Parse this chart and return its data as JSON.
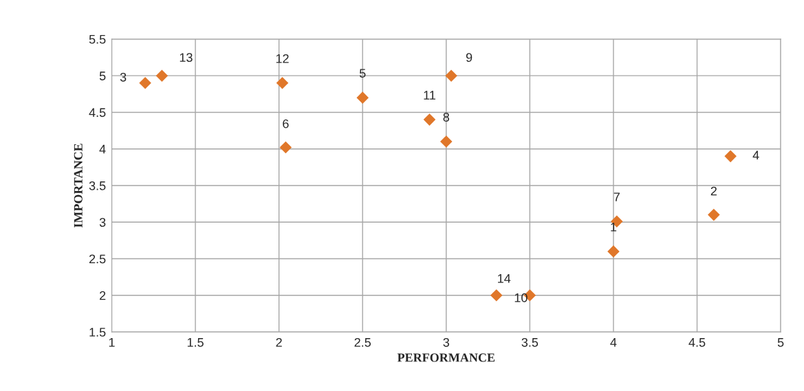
{
  "chart_data": {
    "type": "scatter",
    "xlabel": "PERFORMANCE",
    "ylabel": "IMPORTANCE",
    "x": [
      4.0,
      4.6,
      1.2,
      4.7,
      2.5,
      2.04,
      4.02,
      3.0,
      3.03,
      3.5,
      2.9,
      2.02,
      1.3,
      3.3
    ],
    "values": [
      2.6,
      3.1,
      4.9,
      3.9,
      4.7,
      4.02,
      3.01,
      4.1,
      5.0,
      2.0,
      4.4,
      4.9,
      5.0,
      2.0
    ],
    "color": "#e0772a",
    "marker": "diamond",
    "grid": true,
    "xlim": [
      1,
      5
    ],
    "xticks": [
      1,
      1.5,
      2,
      2.5,
      3,
      3.5,
      4,
      4.5,
      5
    ],
    "ylim": [
      1.5,
      5.5
    ],
    "yticks": [
      1.5,
      2,
      2.5,
      3,
      3.5,
      4,
      4.5,
      5,
      5.5
    ],
    "annotations": [
      {
        "text": "1",
        "x": 4.0,
        "y": 2.6
      },
      {
        "text": "2",
        "x": 4.6,
        "y": 3.1
      },
      {
        "text": "3",
        "x": 1.2,
        "y": 4.9
      },
      {
        "text": "4",
        "x": 4.7,
        "y": 3.9
      },
      {
        "text": "5",
        "x": 2.5,
        "y": 4.7
      },
      {
        "text": "6",
        "x": 2.04,
        "y": 4.02
      },
      {
        "text": "7",
        "x": 4.02,
        "y": 3.01
      },
      {
        "text": "8",
        "x": 3.0,
        "y": 4.1
      },
      {
        "text": "9",
        "x": 3.03,
        "y": 5.0
      },
      {
        "text": "10",
        "x": 3.5,
        "y": 2.0
      },
      {
        "text": "11",
        "x": 2.9,
        "y": 4.4
      },
      {
        "text": "12",
        "x": 2.02,
        "y": 4.9
      },
      {
        "text": "13",
        "x": 1.3,
        "y": 5.0
      },
      {
        "text": "14",
        "x": 3.3,
        "y": 2.0
      }
    ]
  }
}
